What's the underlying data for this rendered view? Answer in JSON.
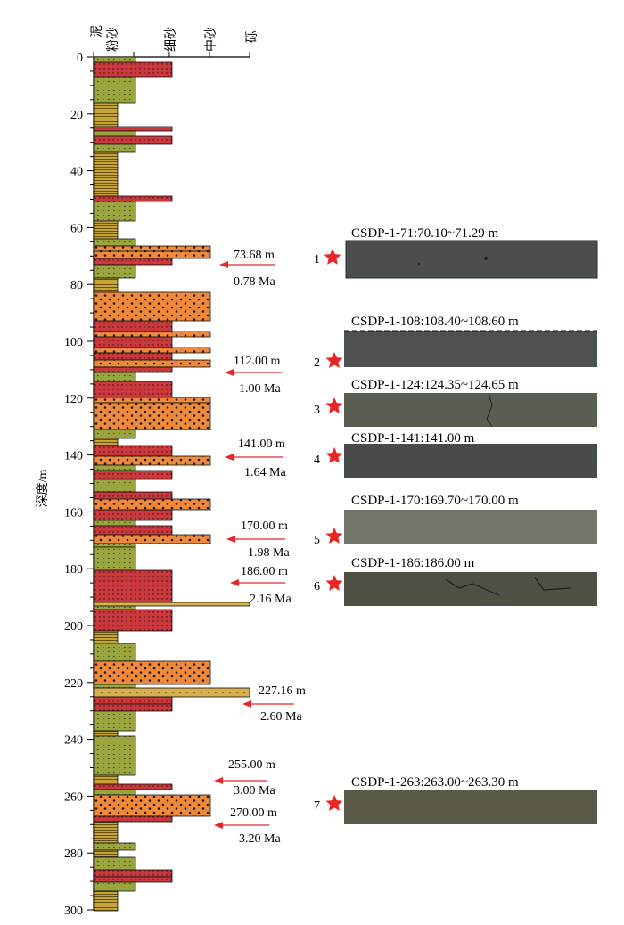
{
  "axis": {
    "ylabel": "深度/m",
    "depth_ticks": [
      "0",
      "20",
      "40",
      "60",
      "80",
      "100",
      "120",
      "140",
      "160",
      "180",
      "200",
      "220",
      "240",
      "260",
      "280",
      "300"
    ],
    "grain_labels": [
      "泥",
      "粉砂",
      "细砂",
      "中砂",
      "砾"
    ]
  },
  "lithology_legend_colors": {
    "mud": "#c8a532",
    "silt": "#9aa540",
    "fine_sand": "#c8383c",
    "medium_sand": "#f08a3a",
    "gravel_sand": "#d8b050"
  },
  "age_markers": [
    {
      "depth_label": "73.68 m",
      "age_label": "0.78 Ma"
    },
    {
      "depth_label": "112.00 m",
      "age_label": "1.00 Ma"
    },
    {
      "depth_label": "141.00 m",
      "age_label": "1.64 Ma"
    },
    {
      "depth_label": "170.00 m",
      "age_label": "1.98 Ma"
    },
    {
      "depth_label": "186.00 m",
      "age_label": "2.16 Ma"
    },
    {
      "depth_label": "227.16 m",
      "age_label": "2.60 Ma"
    },
    {
      "depth_label": "255.00 m",
      "age_label": "3.00 Ma"
    },
    {
      "depth_label": "270.00 m",
      "age_label": "3.20 Ma"
    }
  ],
  "cores": [
    {
      "number": "1",
      "title": "CSDP-1-71:70.10~71.29  m"
    },
    {
      "number": "2",
      "title": "CSDP-1-108:108.40~108.60  m"
    },
    {
      "number": "3",
      "title": "CSDP-1-124:124.35~124.65  m"
    },
    {
      "number": "4",
      "title": "CSDP-1-141:141.00  m"
    },
    {
      "number": "5",
      "title": "CSDP-1-170:169.70~170.00  m"
    },
    {
      "number": "6",
      "title": "CSDP-1-186:186.00  m"
    },
    {
      "number": "7",
      "title": "CSDP-1-263:263.00~263.30  m"
    }
  ],
  "colors": {
    "arrow": "#e8262a",
    "star": "#e8262a"
  }
}
